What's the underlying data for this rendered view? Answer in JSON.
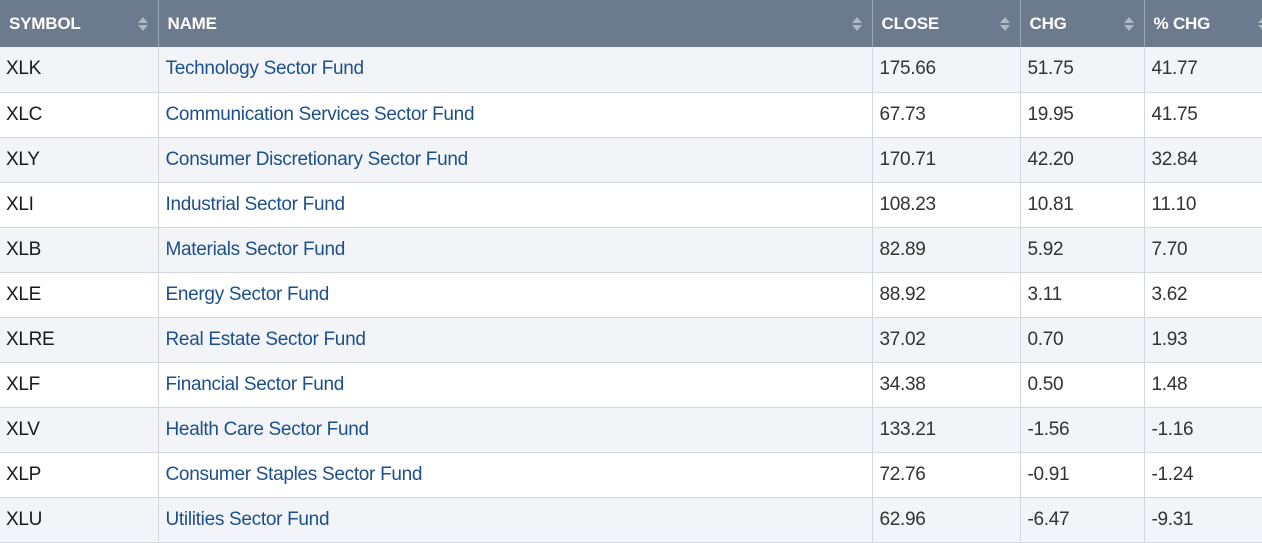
{
  "headers": {
    "symbol": "SYMBOL",
    "name": "NAME",
    "close": "CLOSE",
    "chg": "CHG",
    "pct_chg": "% CHG"
  },
  "rows": [
    {
      "symbol": "XLK",
      "name": "Technology Sector Fund",
      "close": "175.66",
      "chg": "51.75",
      "pct_chg": "41.77"
    },
    {
      "symbol": "XLC",
      "name": "Communication Services Sector Fund",
      "close": "67.73",
      "chg": "19.95",
      "pct_chg": "41.75"
    },
    {
      "symbol": "XLY",
      "name": "Consumer Discretionary Sector Fund",
      "close": "170.71",
      "chg": "42.20",
      "pct_chg": "32.84"
    },
    {
      "symbol": "XLI",
      "name": "Industrial Sector Fund",
      "close": "108.23",
      "chg": "10.81",
      "pct_chg": "11.10"
    },
    {
      "symbol": "XLB",
      "name": "Materials Sector Fund",
      "close": "82.89",
      "chg": "5.92",
      "pct_chg": "7.70"
    },
    {
      "symbol": "XLE",
      "name": "Energy Sector Fund",
      "close": "88.92",
      "chg": "3.11",
      "pct_chg": "3.62"
    },
    {
      "symbol": "XLRE",
      "name": "Real Estate Sector Fund",
      "close": "37.02",
      "chg": "0.70",
      "pct_chg": "1.93"
    },
    {
      "symbol": "XLF",
      "name": "Financial Sector Fund",
      "close": "34.38",
      "chg": "0.50",
      "pct_chg": "1.48"
    },
    {
      "symbol": "XLV",
      "name": "Health Care Sector Fund",
      "close": "133.21",
      "chg": "-1.56",
      "pct_chg": "-1.16"
    },
    {
      "symbol": "XLP",
      "name": "Consumer Staples Sector Fund",
      "close": "72.76",
      "chg": "-0.91",
      "pct_chg": "-1.24"
    },
    {
      "symbol": "XLU",
      "name": "Utilities Sector Fund",
      "close": "62.96",
      "chg": "-6.47",
      "pct_chg": "-9.31"
    }
  ],
  "colors": {
    "header_bg": "#6c7a8d",
    "link": "#1d4f8c",
    "row_stripe": "#f2f4f7"
  },
  "icons": {
    "sort": "sort-arrows-icon"
  }
}
